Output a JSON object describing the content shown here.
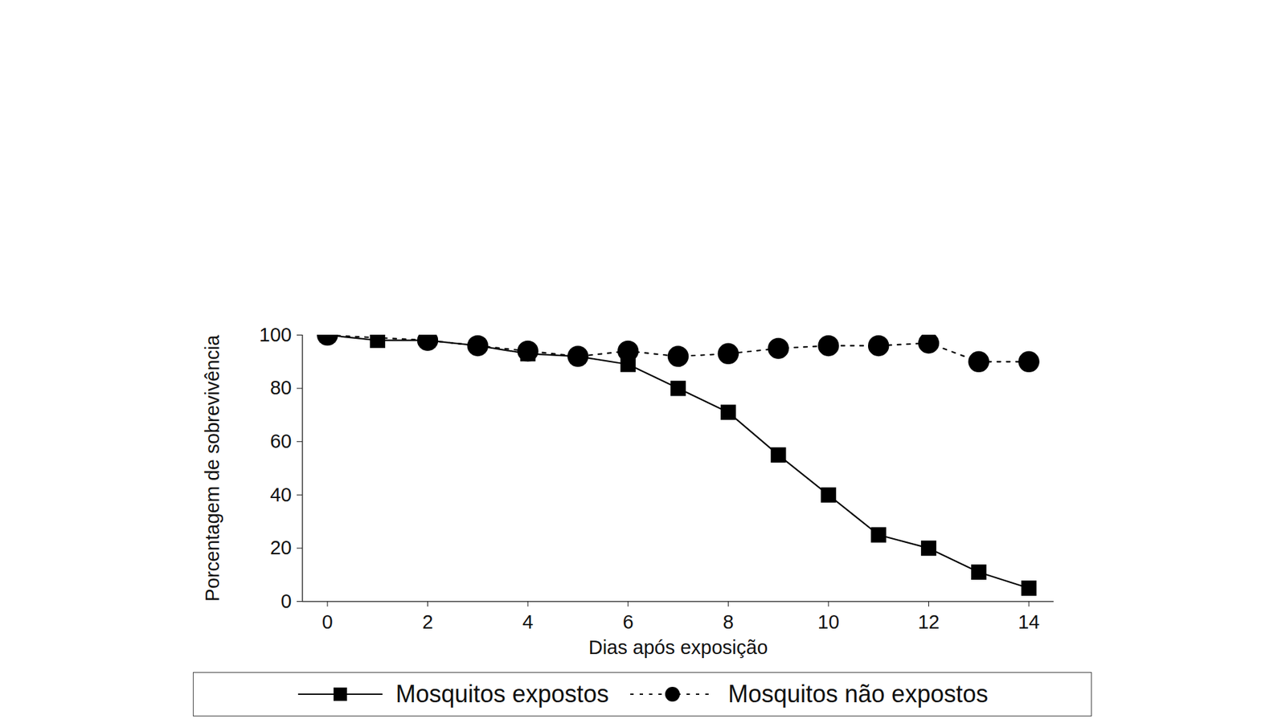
{
  "chart_data": {
    "type": "line",
    "x_label": "Dias após exposição",
    "y_label": "Porcentagem de sobrevivência",
    "xlim": [
      -0.5,
      14.5
    ],
    "xticks": [
      0,
      2,
      4,
      6,
      8,
      10,
      12,
      14
    ],
    "ylim": [
      0,
      100
    ],
    "yticks": [
      0,
      20,
      40,
      60,
      80,
      100
    ],
    "grid": false,
    "legend": "bottom",
    "series": [
      {
        "name": "Mosquitos expostos",
        "color": "#000000",
        "marker": "square",
        "line_style": "solid",
        "x": [
          0,
          1,
          2,
          3,
          4,
          5,
          6,
          7,
          8,
          9,
          10,
          11,
          12,
          13,
          14
        ],
        "values": [
          100,
          98,
          98,
          96,
          93,
          92,
          89,
          80,
          71,
          55,
          40,
          25,
          20,
          11,
          5
        ]
      },
      {
        "name": "Mosquitos não expostos",
        "color": "#000000",
        "marker": "circle",
        "line_style": "dashed",
        "x": [
          0,
          2,
          3,
          4,
          5,
          6,
          7,
          8,
          9,
          10,
          11,
          12,
          13,
          14
        ],
        "values": [
          100,
          98,
          96,
          94,
          92,
          94,
          92,
          93,
          95,
          96,
          96,
          97,
          90,
          90
        ]
      }
    ]
  }
}
